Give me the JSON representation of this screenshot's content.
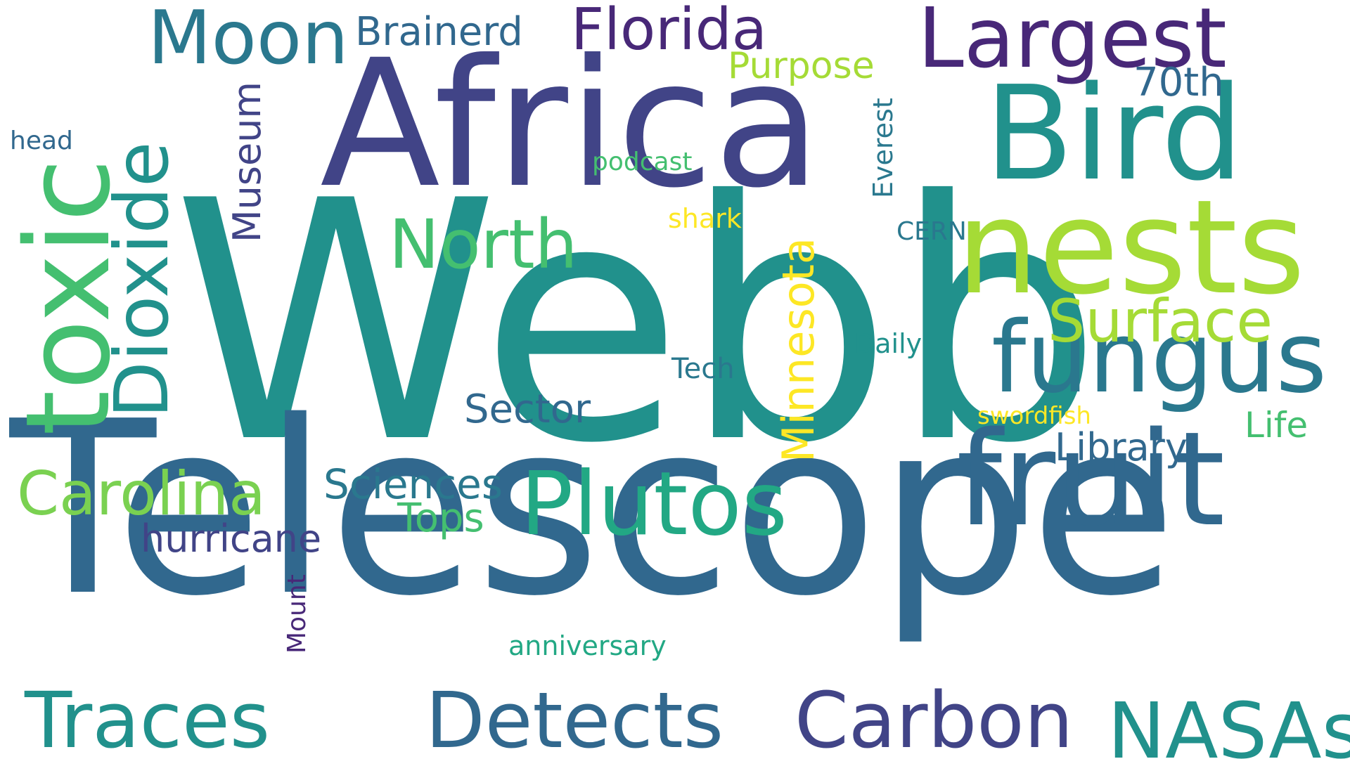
{
  "words": {
    "webb": "Webb",
    "telescope": "Telescope",
    "africa": "Africa",
    "bird": "Bird",
    "nests": "nests",
    "fruit": "fruit",
    "fungus": "fungus",
    "plutos": "Plutos",
    "toxic": "toxic",
    "largest": "Largest",
    "moon": "Moon",
    "florida": "Florida",
    "brainerd": "Brainerd",
    "purpose": "Purpose",
    "seventieth": "70th",
    "dioxide": "Dioxide",
    "museum": "Museum",
    "head": "head",
    "podcast": "podcast",
    "everest": "Everest",
    "north": "North",
    "shark": "shark",
    "cern": "CERN",
    "surface": "Surface",
    "minnesota": "Minnesota",
    "daily": "Daily",
    "tech": "Tech",
    "sector": "Sector",
    "swordfish": "swordfish",
    "life": "Life",
    "library": "Library",
    "carolina": "Carolina",
    "sciences": "Sciences",
    "tops": "Tops",
    "hurricane": "hurricane",
    "mount": "Mount",
    "anniversary": "anniversary",
    "traces": "Traces",
    "detects": "Detects",
    "carbon": "Carbon",
    "nasas": "NASAs"
  },
  "palette": {
    "background": "#ffffff",
    "dark_purple": "#482878",
    "indigo": "#414487",
    "blue": "#31688e",
    "teal_blue": "#2a788e",
    "teal": "#21918c",
    "green_teal": "#22a884",
    "green": "#44bf70",
    "light_green": "#7ad151",
    "lime": "#a5db36",
    "yellow": "#fde725"
  }
}
